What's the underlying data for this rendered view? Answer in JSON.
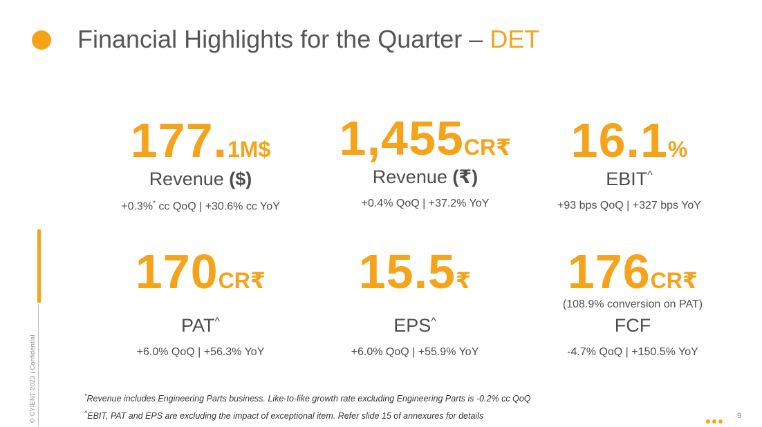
{
  "title": {
    "main": "Financial Highlights for the Quarter –",
    "accent": "DET"
  },
  "colors": {
    "accent": "#f5a31a",
    "text": "#4d4d4d"
  },
  "sidebar": {
    "copyright": "© CYIENT 2023 | Confidential"
  },
  "metrics": [
    {
      "value": "177.",
      "unit": "1M$",
      "label": "Revenue",
      "label_suffix": "($)",
      "growth_a": "+0.3%",
      "growth_mark": "*",
      "growth_b": " cc QoQ | +30.6% cc YoY"
    },
    {
      "value": "1,455",
      "unit": "CR₹",
      "label": "Revenue",
      "label_suffix": "(₹)",
      "growth": "+0.4% QoQ | +37.2% YoY"
    },
    {
      "value": "16.1",
      "unit": "%",
      "label": "EBIT",
      "label_mark": "^",
      "growth": "+93 bps QoQ | +327 bps YoY"
    },
    {
      "value": "170",
      "unit": "CR₹",
      "label": "PAT",
      "label_mark": "^",
      "growth": "+6.0% QoQ | +56.3% YoY"
    },
    {
      "value": "15.5",
      "unit": "₹",
      "label": "EPS",
      "label_mark": "^",
      "growth": "+6.0% QoQ | +55.9% YoY"
    },
    {
      "value": "176",
      "unit": "CR₹",
      "note": "(108.9% conversion on PAT)",
      "label": "FCF",
      "growth": "-4.7% QoQ | +150.5% YoY"
    }
  ],
  "footnotes": {
    "f1_mark": "*",
    "f1": "Revenue includes Engineering Parts business. Like-to-like growth rate excluding Engineering Parts is -0.2% cc QoQ",
    "f2_mark": "^",
    "f2": "EBIT, PAT and EPS are excluding the impact of exceptional item. Refer slide 15 of annexures for details"
  },
  "page_number": "9"
}
